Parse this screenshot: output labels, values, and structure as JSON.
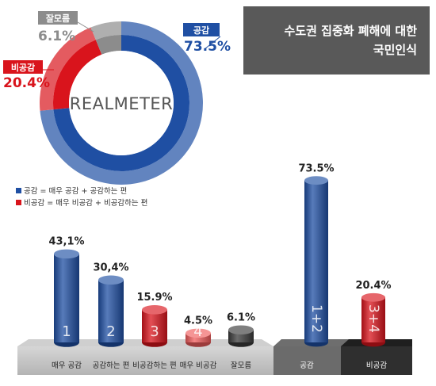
{
  "title_lines": [
    "수도권 집중화 폐해에 대한",
    "국민인식"
  ],
  "colors": {
    "blue": "#1f4fa3",
    "blue_light": "#4a8fd6",
    "red": "#d9141c",
    "red_light": "#f05c5c",
    "gray": "#8c8c8c",
    "dark": "#3a3a3a",
    "title_bg": "#595959"
  },
  "chart_data": [
    {
      "type": "pie",
      "style": "donut",
      "watermark": "REALMETER",
      "slices": [
        {
          "label": "공감",
          "value": 73.5,
          "display": "73.5%",
          "color": "#1f4fa3"
        },
        {
          "label": "비공감",
          "value": 20.4,
          "display": "20.4%",
          "color": "#d9141c"
        },
        {
          "label": "잘모름",
          "value": 6.1,
          "display": "6.1%",
          "color": "#8c8c8c"
        }
      ]
    },
    {
      "type": "bar",
      "style": "3d-cylinder",
      "legend": [
        {
          "text": "공감 = 매우 공감 + 공감하는 편",
          "color": "#1f4fa3"
        },
        {
          "text": "비공감 = 매우 비공감 + 비공감하는 편",
          "color": "#d9141c"
        }
      ],
      "categories": [
        "매우 공감",
        "공감하는 편",
        "비공감하는 편",
        "매우 비공감",
        "잘모름"
      ],
      "values": [
        43.1,
        30.4,
        15.9,
        4.5,
        6.1
      ],
      "display": [
        "43,1%",
        "30,4%",
        "15.9%",
        "4.5%",
        "6.1%"
      ],
      "numbers": [
        "1",
        "2",
        "3",
        "4",
        ""
      ],
      "colors": [
        "blue",
        "blue",
        "red",
        "red_light",
        "dark"
      ]
    },
    {
      "type": "bar",
      "style": "3d-cylinder",
      "categories": [
        "공감",
        "비공감"
      ],
      "values": [
        73.5,
        20.4
      ],
      "display": [
        "73.5%",
        "20.4%"
      ],
      "numbers": [
        "1+2",
        "3+4"
      ],
      "colors": [
        "blue",
        "red"
      ]
    }
  ]
}
